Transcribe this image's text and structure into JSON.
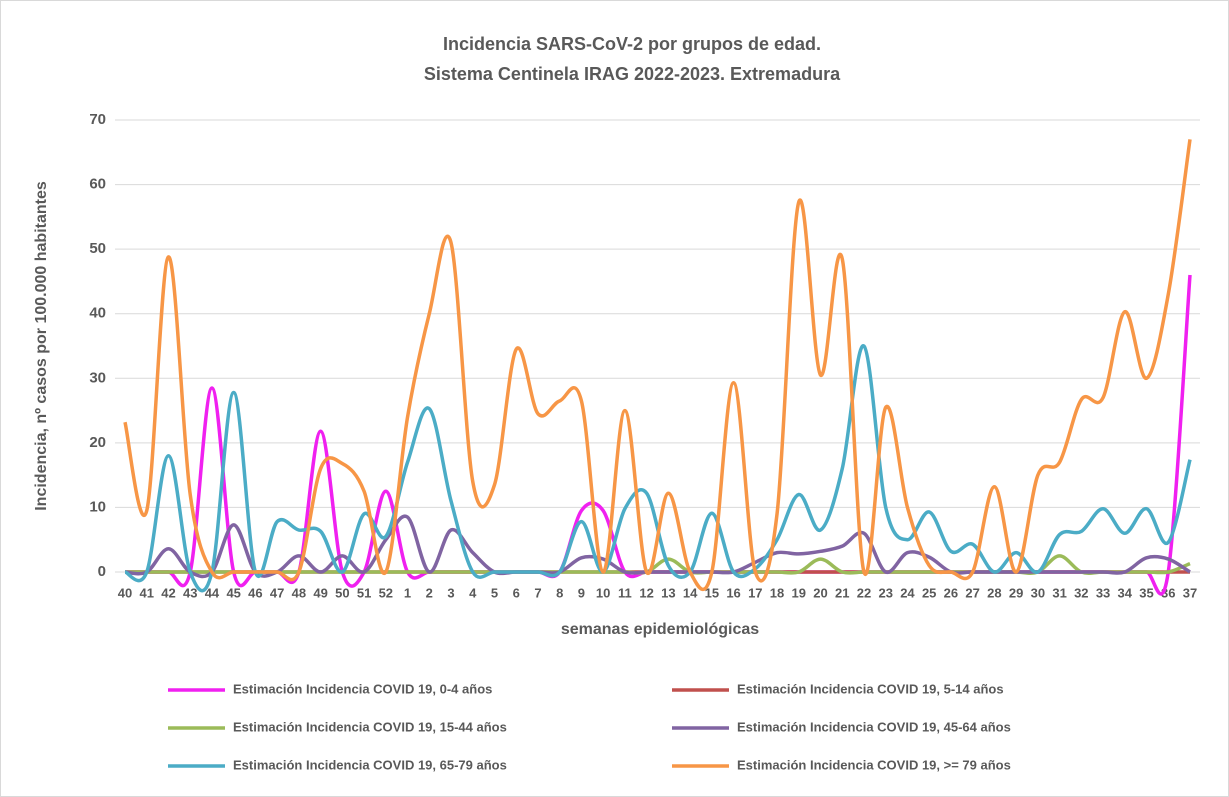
{
  "chart_data": {
    "type": "line",
    "title": "Incidencia SARS-CoV-2 por grupos de edad.",
    "subtitle": "Sistema Centinela IRAG 2022-2023. Extremadura",
    "x_label": "semanas epidemiológicas",
    "y_label": "Incidencia, nº casos por 100.000 habitantes",
    "categories": [
      "40",
      "41",
      "42",
      "43",
      "44",
      "45",
      "46",
      "47",
      "48",
      "49",
      "50",
      "51",
      "52",
      "1",
      "2",
      "3",
      "4",
      "5",
      "6",
      "7",
      "8",
      "9",
      "10",
      "11",
      "12",
      "13",
      "14",
      "15",
      "16",
      "17",
      "18",
      "19",
      "20",
      "21",
      "22",
      "23",
      "24",
      "25",
      "26",
      "27",
      "28",
      "29",
      "30",
      "31",
      "32",
      "33",
      "34",
      "35",
      "36",
      "37"
    ],
    "ylim": [
      0,
      70
    ],
    "yticks": [
      0,
      10,
      20,
      30,
      40,
      50,
      60,
      70
    ],
    "grid": true,
    "smooth": true,
    "legend": "bottom",
    "series": [
      {
        "name": "Estimación Incidencia COVID 19, 0-4 años",
        "color": "#f020f0",
        "values": [
          0,
          0,
          0,
          0,
          28.5,
          0,
          0,
          0,
          0,
          21.8,
          0,
          0,
          12.5,
          0,
          0,
          0,
          0,
          0,
          0,
          0,
          0,
          9.5,
          9.5,
          0,
          0,
          0,
          0,
          0,
          0,
          0,
          0,
          0,
          0,
          0,
          0,
          0,
          0,
          0,
          0,
          0,
          0,
          0,
          0,
          0,
          0,
          0,
          0,
          0,
          0,
          46
        ]
      },
      {
        "name": "Estimación Incidencia COVID 19, 5-14 años",
        "color": "#c0504d",
        "values": [
          0,
          0,
          0,
          0,
          0,
          0,
          0,
          0,
          0,
          0,
          0,
          0,
          0,
          0,
          0,
          0,
          0,
          0,
          0,
          0,
          0,
          0,
          0,
          0,
          0,
          0,
          0,
          0,
          0,
          0,
          0,
          0,
          0,
          0,
          0,
          0,
          0,
          0,
          0,
          0,
          0,
          0,
          0,
          0,
          0,
          0,
          0,
          0,
          0,
          0
        ]
      },
      {
        "name": "Estimación Incidencia COVID 19, 15-44 años",
        "color": "#9bbb59",
        "values": [
          0,
          0,
          0,
          0,
          0,
          0,
          0,
          0,
          0,
          0,
          0,
          0,
          0,
          0,
          0,
          0,
          0,
          0,
          0,
          0,
          0,
          0,
          0,
          0,
          0,
          2,
          0,
          0,
          0,
          0,
          0,
          0,
          2,
          0,
          0,
          0,
          0,
          0,
          0,
          0,
          0,
          0,
          0,
          2.5,
          0,
          0,
          0,
          0,
          0,
          1.3
        ]
      },
      {
        "name": "Estimación Incidencia COVID 19, 45-64 años",
        "color": "#8064a2",
        "values": [
          0,
          0,
          3.6,
          0,
          0,
          7.3,
          0,
          0,
          2.5,
          0,
          2.5,
          0,
          5,
          8.5,
          0,
          6.5,
          3,
          0,
          0,
          0,
          0,
          2.2,
          2,
          0,
          0,
          0,
          0,
          0,
          0,
          1.5,
          3,
          2.8,
          3.2,
          4,
          6,
          0,
          3,
          2.3,
          0,
          0,
          0,
          0,
          0,
          0,
          0,
          0,
          0,
          2.2,
          2,
          0
        ]
      },
      {
        "name": "Estimación Incidencia COVID 19, 65-79 años",
        "color": "#4bacc6",
        "values": [
          0,
          0,
          18,
          0,
          0,
          27.8,
          0,
          7.8,
          6.5,
          6.3,
          0,
          9,
          5.5,
          17,
          25.3,
          11,
          0,
          0,
          0,
          0,
          0,
          7.8,
          0,
          9.8,
          12.2,
          1,
          0,
          9.1,
          0,
          0.5,
          5,
          12,
          6.5,
          16,
          35,
          10,
          5,
          9.3,
          3.2,
          4.3,
          0,
          3,
          0,
          5.8,
          6.3,
          9.8,
          6,
          9.8,
          4.6,
          17.4
        ]
      },
      {
        "name": "Estimación Incidencia COVID 19, >= 79 años",
        "color": "#f79646",
        "values": [
          23.2,
          9.5,
          48.8,
          12,
          0,
          0,
          0,
          0,
          0,
          16,
          16.8,
          12.5,
          0,
          24,
          40,
          51,
          14,
          13.5,
          34.5,
          24.5,
          26.5,
          26.5,
          0,
          25,
          0,
          12.2,
          0,
          0,
          29.3,
          0,
          9,
          57.3,
          30.5,
          48.5,
          0,
          25.5,
          10,
          1,
          0,
          0,
          13.2,
          0,
          15,
          17,
          26.7,
          27,
          40.3,
          30,
          43,
          67
        ]
      }
    ]
  }
}
